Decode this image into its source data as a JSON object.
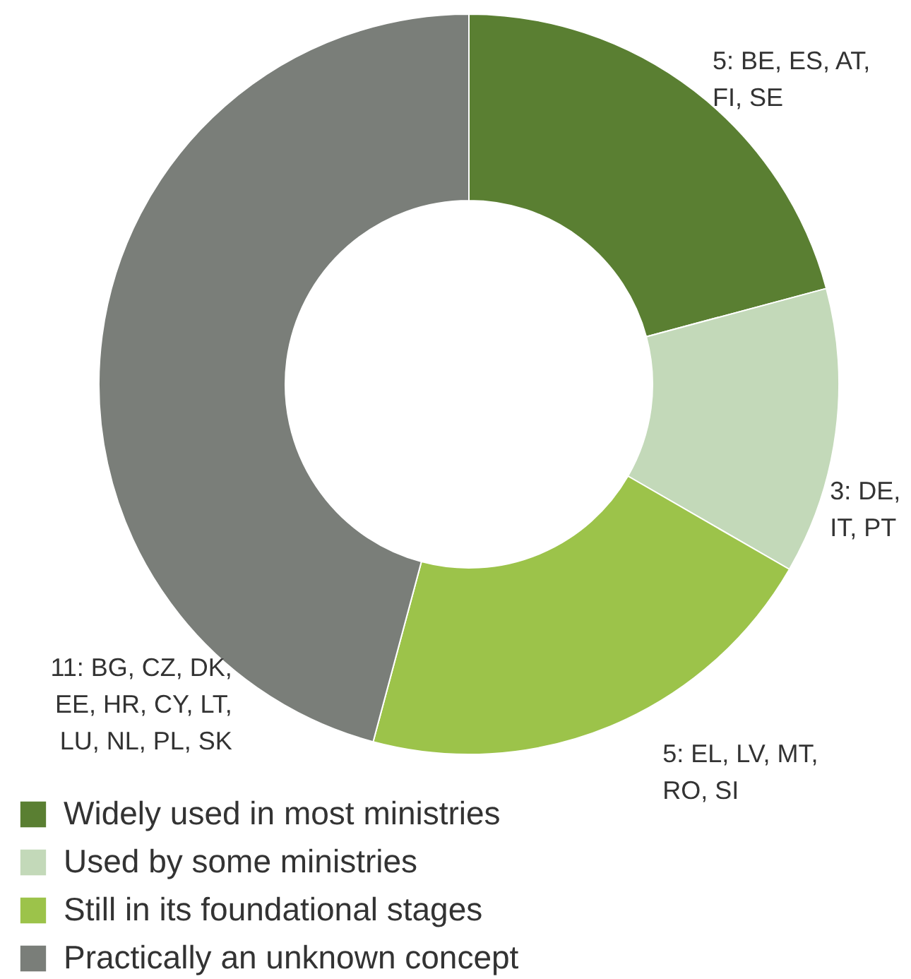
{
  "chart_data": {
    "type": "donut",
    "categories": [
      "Widely used in most ministries",
      "Used by some ministries",
      "Still in its foundational stages",
      "Practically an unknown concept"
    ],
    "values": [
      5,
      3,
      5,
      11
    ],
    "colors": [
      "#5a7f32",
      "#c3d9b9",
      "#9cc34a",
      "#7a7e79"
    ],
    "value_labels": [
      "5: BE, ES, AT,\nFI, SE",
      "3: DE,\nIT, PT",
      "5: EL, LV, MT,\nRO, SI",
      "11: BG, CZ, DK,\nEE, HR, CY, LT,\nLU, NL, PL, SK"
    ],
    "legend": "bottom left"
  }
}
